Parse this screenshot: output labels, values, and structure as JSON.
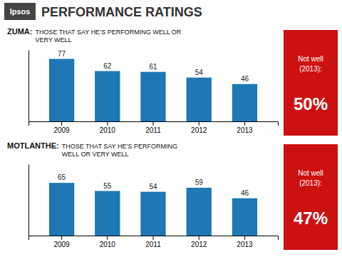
{
  "title": "PERFORMANCE RATINGS",
  "annotations": [
    "Ipsos"
  ],
  "chart_data": [
    {
      "type": "bar",
      "title": "ZUMA:",
      "subtitle": "THOSE THAT SAY HE’S PERFORMING WELL OR\nVERY WELL",
      "categories": [
        "2009",
        "2010",
        "2011",
        "2012",
        "2013"
      ],
      "values": [
        77,
        62,
        61,
        54,
        46
      ],
      "ylim": [
        0,
        88
      ],
      "data_labels": true,
      "tick_labels": "x",
      "grid": false,
      "annotations": [
        "Not well\n(2013):",
        "50%"
      ]
    },
    {
      "type": "bar",
      "title": "MOTLANTHE:",
      "subtitle": "THOSE THAT SAY HE’S PERFORMING\nWELL OR VERY WELL",
      "categories": [
        "2009",
        "2010",
        "2011",
        "2012",
        "2013"
      ],
      "values": [
        65,
        55,
        54,
        59,
        46
      ],
      "ylim": [
        0,
        88
      ],
      "data_labels": true,
      "tick_labels": "x",
      "grid": false,
      "annotations": [
        "Not well\n(2013):",
        "47%"
      ]
    }
  ]
}
